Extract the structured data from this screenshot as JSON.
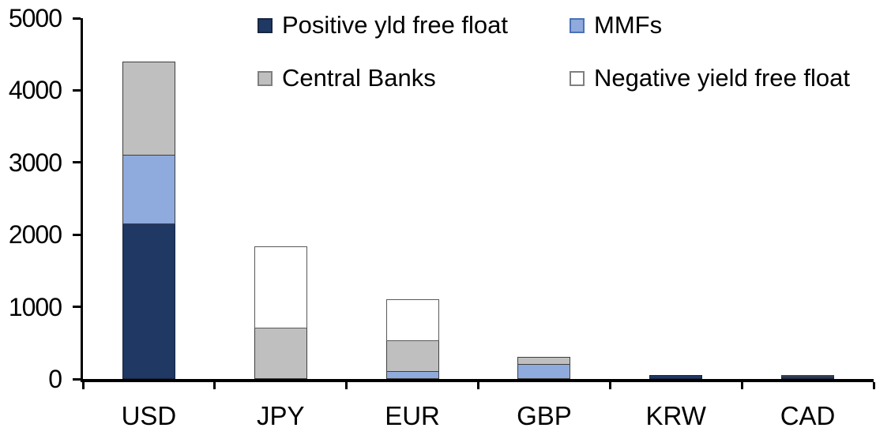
{
  "chart_data": {
    "type": "bar",
    "stacked": true,
    "title": "",
    "xlabel": "",
    "ylabel": "",
    "categories": [
      "USD",
      "JPY",
      "EUR",
      "GBP",
      "KRW",
      "CAD"
    ],
    "series": [
      {
        "name": "Positive yld free float",
        "color": "#1F3864",
        "border": "#17263F",
        "swatch_border": "#17263F",
        "values": [
          2150,
          0,
          0,
          0,
          50,
          30
        ]
      },
      {
        "name": "MMFs",
        "color": "#8FAADC",
        "border": "#3F3F3F",
        "swatch_border": "#4A72B8",
        "values": [
          950,
          0,
          100,
          200,
          0,
          0
        ]
      },
      {
        "name": "Central Banks",
        "color": "#BFBFBF",
        "border": "#3F3F3F",
        "swatch_border": "#7F7F7F",
        "values": [
          1300,
          700,
          430,
          110,
          0,
          30
        ]
      },
      {
        "name": "Negative yield free float",
        "color": "#FFFFFF",
        "border": "#595959",
        "swatch_border": "#7F7F7F",
        "values": [
          0,
          1140,
          570,
          0,
          0,
          0
        ]
      }
    ],
    "totals": [
      4400,
      1840,
      1100,
      310,
      50,
      60
    ],
    "ylim": [
      0,
      5000
    ],
    "yticks": [
      0,
      1000,
      2000,
      3000,
      4000,
      5000
    ],
    "grid": false,
    "legend_position": "top",
    "axis_color": "#000000",
    "text_color": "#000000",
    "background": "#FFFFFF"
  }
}
